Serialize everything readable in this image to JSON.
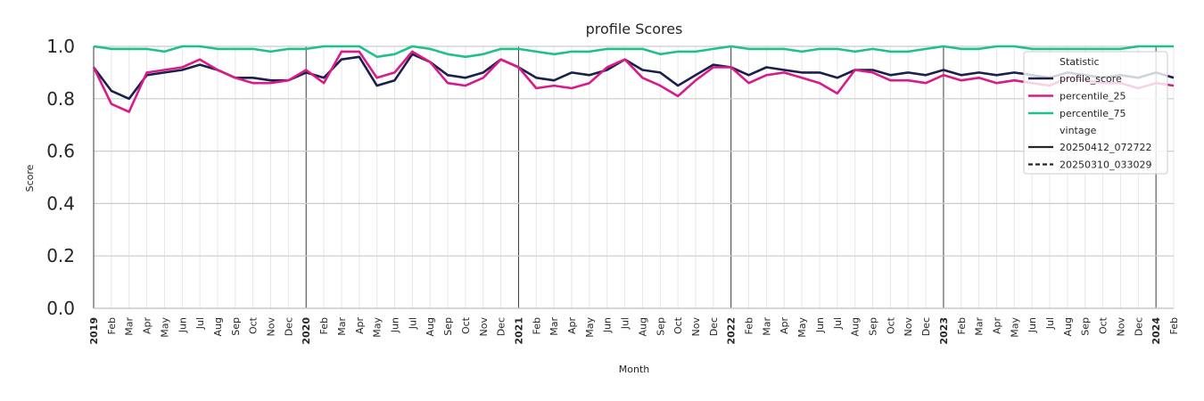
{
  "chart_data": {
    "type": "line",
    "title": "profile Scores",
    "xlabel": "Month",
    "ylabel": "Score",
    "ylim": [
      0.0,
      1.0
    ],
    "yticks": [
      "0.0",
      "0.2",
      "0.4",
      "0.6",
      "0.8",
      "1.0"
    ],
    "x_range": [
      "2019-01",
      "2024-02"
    ],
    "x_tick_labels": [
      "2019",
      "Feb",
      "Mar",
      "Apr",
      "May",
      "Jun",
      "Jul",
      "Aug",
      "Sep",
      "Oct",
      "Nov",
      "Dec",
      "2020",
      "Feb",
      "Mar",
      "Apr",
      "May",
      "Jun",
      "Jul",
      "Aug",
      "Sep",
      "Oct",
      "Nov",
      "Dec",
      "2021",
      "Feb",
      "Mar",
      "Apr",
      "May",
      "Jun",
      "Jul",
      "Aug",
      "Sep",
      "Oct",
      "Nov",
      "Dec",
      "2022",
      "Feb",
      "Mar",
      "Apr",
      "May",
      "Jun",
      "Jul",
      "Aug",
      "Sep",
      "Oct",
      "Nov",
      "Dec",
      "2023",
      "Feb",
      "Mar",
      "Apr",
      "May",
      "Jun",
      "Jul",
      "Aug",
      "Sep",
      "Oct",
      "Nov",
      "Dec",
      "2024",
      "Feb"
    ],
    "grid": true,
    "legend_position": "upper right",
    "legend": {
      "statistic_title": "Statistic",
      "vintage_title": "vintage",
      "vintages": [
        {
          "name": "20250412_072722",
          "style": "solid"
        },
        {
          "name": "20250310_033029",
          "style": "dashed"
        }
      ]
    },
    "series": [
      {
        "name": "profile_score",
        "color": "#1b1f4b",
        "values": [
          0.92,
          0.83,
          0.8,
          0.89,
          0.9,
          0.91,
          0.93,
          0.91,
          0.88,
          0.88,
          0.87,
          0.87,
          0.9,
          0.88,
          0.95,
          0.96,
          0.85,
          0.87,
          0.97,
          0.94,
          0.89,
          0.88,
          0.9,
          0.95,
          0.92,
          0.88,
          0.87,
          0.9,
          0.89,
          0.91,
          0.95,
          0.91,
          0.9,
          0.85,
          0.89,
          0.93,
          0.92,
          0.89,
          0.92,
          0.91,
          0.9,
          0.9,
          0.88,
          0.91,
          0.91,
          0.89,
          0.9,
          0.89,
          0.91,
          0.89,
          0.9,
          0.89,
          0.9,
          0.89,
          0.88,
          0.9,
          0.89,
          0.88,
          0.89,
          0.88,
          0.9,
          0.88
        ]
      },
      {
        "name": "percentile_25",
        "color": "#d81b88",
        "values": [
          0.92,
          0.78,
          0.75,
          0.9,
          0.91,
          0.92,
          0.95,
          0.91,
          0.88,
          0.86,
          0.86,
          0.87,
          0.91,
          0.86,
          0.98,
          0.98,
          0.88,
          0.9,
          0.98,
          0.94,
          0.86,
          0.85,
          0.88,
          0.95,
          0.92,
          0.84,
          0.85,
          0.84,
          0.86,
          0.92,
          0.95,
          0.88,
          0.85,
          0.81,
          0.87,
          0.92,
          0.92,
          0.86,
          0.89,
          0.9,
          0.88,
          0.86,
          0.82,
          0.91,
          0.9,
          0.87,
          0.87,
          0.86,
          0.89,
          0.87,
          0.88,
          0.86,
          0.87,
          0.86,
          0.85,
          0.88,
          0.87,
          0.86,
          0.86,
          0.84,
          0.86,
          0.85
        ]
      },
      {
        "name": "percentile_75",
        "color": "#1fbf8f",
        "values": [
          1.0,
          0.99,
          0.99,
          0.99,
          0.98,
          1.0,
          1.0,
          0.99,
          0.99,
          0.99,
          0.98,
          0.99,
          0.99,
          1.0,
          1.0,
          1.0,
          0.96,
          0.97,
          1.0,
          0.99,
          0.97,
          0.96,
          0.97,
          0.99,
          0.99,
          0.98,
          0.97,
          0.98,
          0.98,
          0.99,
          0.99,
          0.99,
          0.97,
          0.98,
          0.98,
          0.99,
          1.0,
          0.99,
          0.99,
          0.99,
          0.98,
          0.99,
          0.99,
          0.98,
          0.99,
          0.98,
          0.98,
          0.99,
          1.0,
          0.99,
          0.99,
          1.0,
          1.0,
          0.99,
          0.99,
          0.99,
          0.99,
          0.99,
          0.99,
          1.0,
          1.0,
          1.0
        ]
      }
    ]
  }
}
